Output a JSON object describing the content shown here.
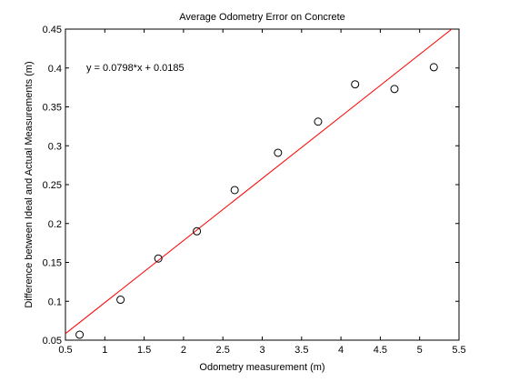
{
  "chart_data": {
    "type": "scatter",
    "title": "Average Odometry Error on Concrete",
    "xlabel": "Odometry measurement (m)",
    "ylabel": "Difference between Ideal and Actual Measurements (m)",
    "xlim": [
      0.5,
      5.5
    ],
    "ylim": [
      0.05,
      0.45
    ],
    "xticks": [
      0.5,
      1,
      1.5,
      2,
      2.5,
      3,
      3.5,
      4,
      4.5,
      5,
      5.5
    ],
    "xtick_labels": [
      "0.5",
      "1",
      "1.5",
      "2",
      "2.5",
      "3",
      "3.5",
      "4",
      "4.5",
      "5",
      "5.5"
    ],
    "yticks": [
      0.05,
      0.1,
      0.15,
      0.2,
      0.25,
      0.3,
      0.35,
      0.4,
      0.45
    ],
    "ytick_labels": [
      "0.05",
      "0.1",
      "0.15",
      "0.2",
      "0.25",
      "0.3",
      "0.35",
      "0.4",
      "0.45"
    ],
    "grid": false,
    "points": {
      "x": [
        0.68,
        1.2,
        1.68,
        2.17,
        2.65,
        3.2,
        3.71,
        4.18,
        4.68,
        5.18
      ],
      "y": [
        0.057,
        0.102,
        0.155,
        0.19,
        0.243,
        0.291,
        0.331,
        0.379,
        0.373,
        0.401
      ],
      "marker": "open-circle",
      "color": "#000000"
    },
    "fit": {
      "slope": 0.0798,
      "intercept": 0.0185,
      "color": "#ff0000"
    },
    "annotation": "y = 0.0798*x + 0.0185"
  }
}
